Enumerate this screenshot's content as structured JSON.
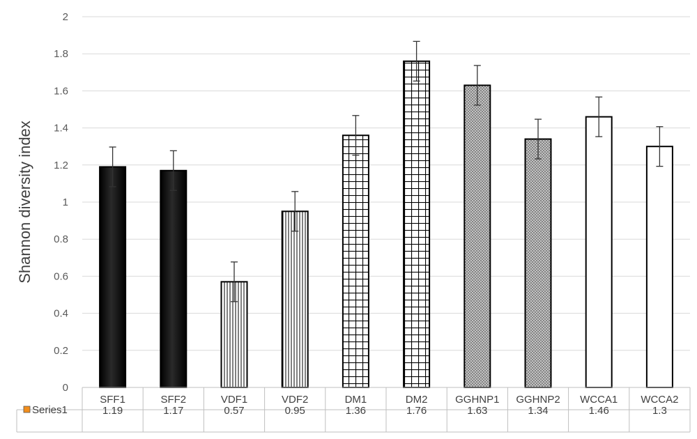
{
  "chart_data": {
    "type": "bar",
    "ylabel": "Shannon diversity index",
    "ylim": [
      0,
      2
    ],
    "yticks": [
      0,
      0.2,
      0.4,
      0.6,
      0.8,
      1,
      1.2,
      1.4,
      1.6,
      1.8,
      2
    ],
    "grid": true,
    "categories": [
      "SFF1",
      "SFF2",
      "VDF1",
      "VDF2",
      "DM1",
      "DM2",
      "GGHNP1",
      "GGHNP2",
      "WCCA1",
      "WCCA2"
    ],
    "series": [
      {
        "name": "Series1",
        "legend_color": "#f28e1c",
        "values": [
          1.19,
          1.17,
          0.57,
          0.95,
          1.36,
          1.76,
          1.63,
          1.34,
          1.46,
          1.3
        ],
        "error": [
          0.107,
          0.107,
          0.107,
          0.107,
          0.107,
          0.107,
          0.107,
          0.107,
          0.107,
          0.107
        ],
        "fills": [
          "solid-black",
          "solid-black",
          "vertical-lines",
          "vertical-lines",
          "grid",
          "grid",
          "crosshatch",
          "crosshatch",
          "white",
          "white"
        ]
      }
    ],
    "data_table": true
  }
}
